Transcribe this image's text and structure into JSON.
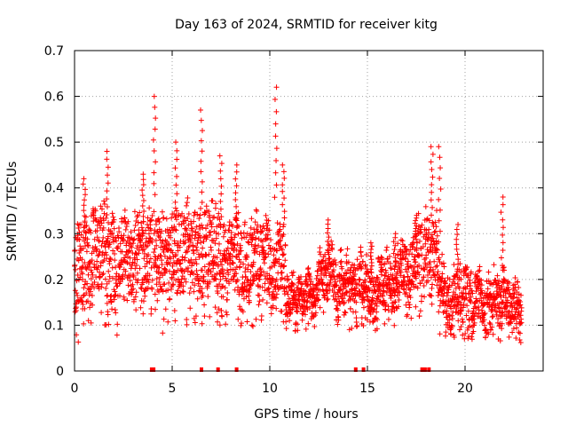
{
  "chart_data": {
    "type": "scatter",
    "title": "Day 163 of 2024, SRMTID for receiver kitg",
    "xlabel": "GPS time / hours",
    "ylabel": "SRMTID / TECUs",
    "xlim": [
      0,
      24
    ],
    "ylim": [
      0,
      0.7
    ],
    "x_ticks": [
      0,
      5,
      10,
      15,
      20
    ],
    "y_ticks": [
      0,
      0.1,
      0.2,
      0.3,
      0.4,
      0.5,
      0.6,
      0.7
    ],
    "x_tick_labels": [
      "0",
      "5",
      "10",
      "15",
      "20"
    ],
    "y_tick_labels": [
      "0",
      "0.1",
      "0.2",
      "0.3",
      "0.4",
      "0.5",
      "0.6",
      "0.7"
    ],
    "grid": true,
    "marker": "plus",
    "series_color": "#ff0000",
    "time_step_hours": 0.008,
    "envelope": [
      {
        "start": 0.0,
        "end": 0.5,
        "center": 0.22,
        "spread": 0.09
      },
      {
        "start": 0.5,
        "end": 1.5,
        "center": 0.26,
        "spread": 0.09
      },
      {
        "start": 1.5,
        "end": 2.2,
        "center": 0.24,
        "spread": 0.1
      },
      {
        "start": 2.2,
        "end": 3.5,
        "center": 0.26,
        "spread": 0.08
      },
      {
        "start": 3.5,
        "end": 4.5,
        "center": 0.27,
        "spread": 0.09
      },
      {
        "start": 4.5,
        "end": 5.5,
        "center": 0.24,
        "spread": 0.09
      },
      {
        "start": 5.5,
        "end": 7.5,
        "center": 0.26,
        "spread": 0.09
      },
      {
        "start": 7.5,
        "end": 9.5,
        "center": 0.24,
        "spread": 0.08
      },
      {
        "start": 9.5,
        "end": 10.8,
        "center": 0.25,
        "spread": 0.08
      },
      {
        "start": 10.8,
        "end": 12.5,
        "center": 0.16,
        "spread": 0.04
      },
      {
        "start": 12.5,
        "end": 14.0,
        "center": 0.2,
        "spread": 0.05
      },
      {
        "start": 14.0,
        "end": 16.5,
        "center": 0.18,
        "spread": 0.05
      },
      {
        "start": 16.5,
        "end": 17.5,
        "center": 0.22,
        "spread": 0.06
      },
      {
        "start": 17.5,
        "end": 18.6,
        "center": 0.26,
        "spread": 0.08
      },
      {
        "start": 18.6,
        "end": 20.0,
        "center": 0.17,
        "spread": 0.06
      },
      {
        "start": 20.0,
        "end": 21.5,
        "center": 0.16,
        "spread": 0.05
      },
      {
        "start": 21.5,
        "end": 22.9,
        "center": 0.15,
        "spread": 0.05
      }
    ],
    "peaks": [
      {
        "x": 0.5,
        "y": 0.42
      },
      {
        "x": 1.7,
        "y": 0.48
      },
      {
        "x": 3.5,
        "y": 0.43
      },
      {
        "x": 4.1,
        "y": 0.6
      },
      {
        "x": 5.2,
        "y": 0.5
      },
      {
        "x": 6.5,
        "y": 0.57
      },
      {
        "x": 7.5,
        "y": 0.47
      },
      {
        "x": 8.3,
        "y": 0.45
      },
      {
        "x": 10.3,
        "y": 0.62
      },
      {
        "x": 10.7,
        "y": 0.45
      },
      {
        "x": 13.0,
        "y": 0.33
      },
      {
        "x": 15.2,
        "y": 0.28
      },
      {
        "x": 16.4,
        "y": 0.3
      },
      {
        "x": 17.5,
        "y": 0.34
      },
      {
        "x": 18.3,
        "y": 0.49
      },
      {
        "x": 18.7,
        "y": 0.49
      },
      {
        "x": 19.6,
        "y": 0.32
      },
      {
        "x": 21.9,
        "y": 0.38
      }
    ],
    "gaps": [
      {
        "start": 4.0,
        "end": 4.05
      },
      {
        "start": 14.5,
        "end": 14.55
      },
      {
        "start": 17.8,
        "end": 17.85
      }
    ],
    "zero_flags": [
      3.95,
      4.05,
      6.5,
      7.35,
      8.3,
      14.4,
      14.8,
      17.8,
      17.95,
      18.15
    ]
  }
}
